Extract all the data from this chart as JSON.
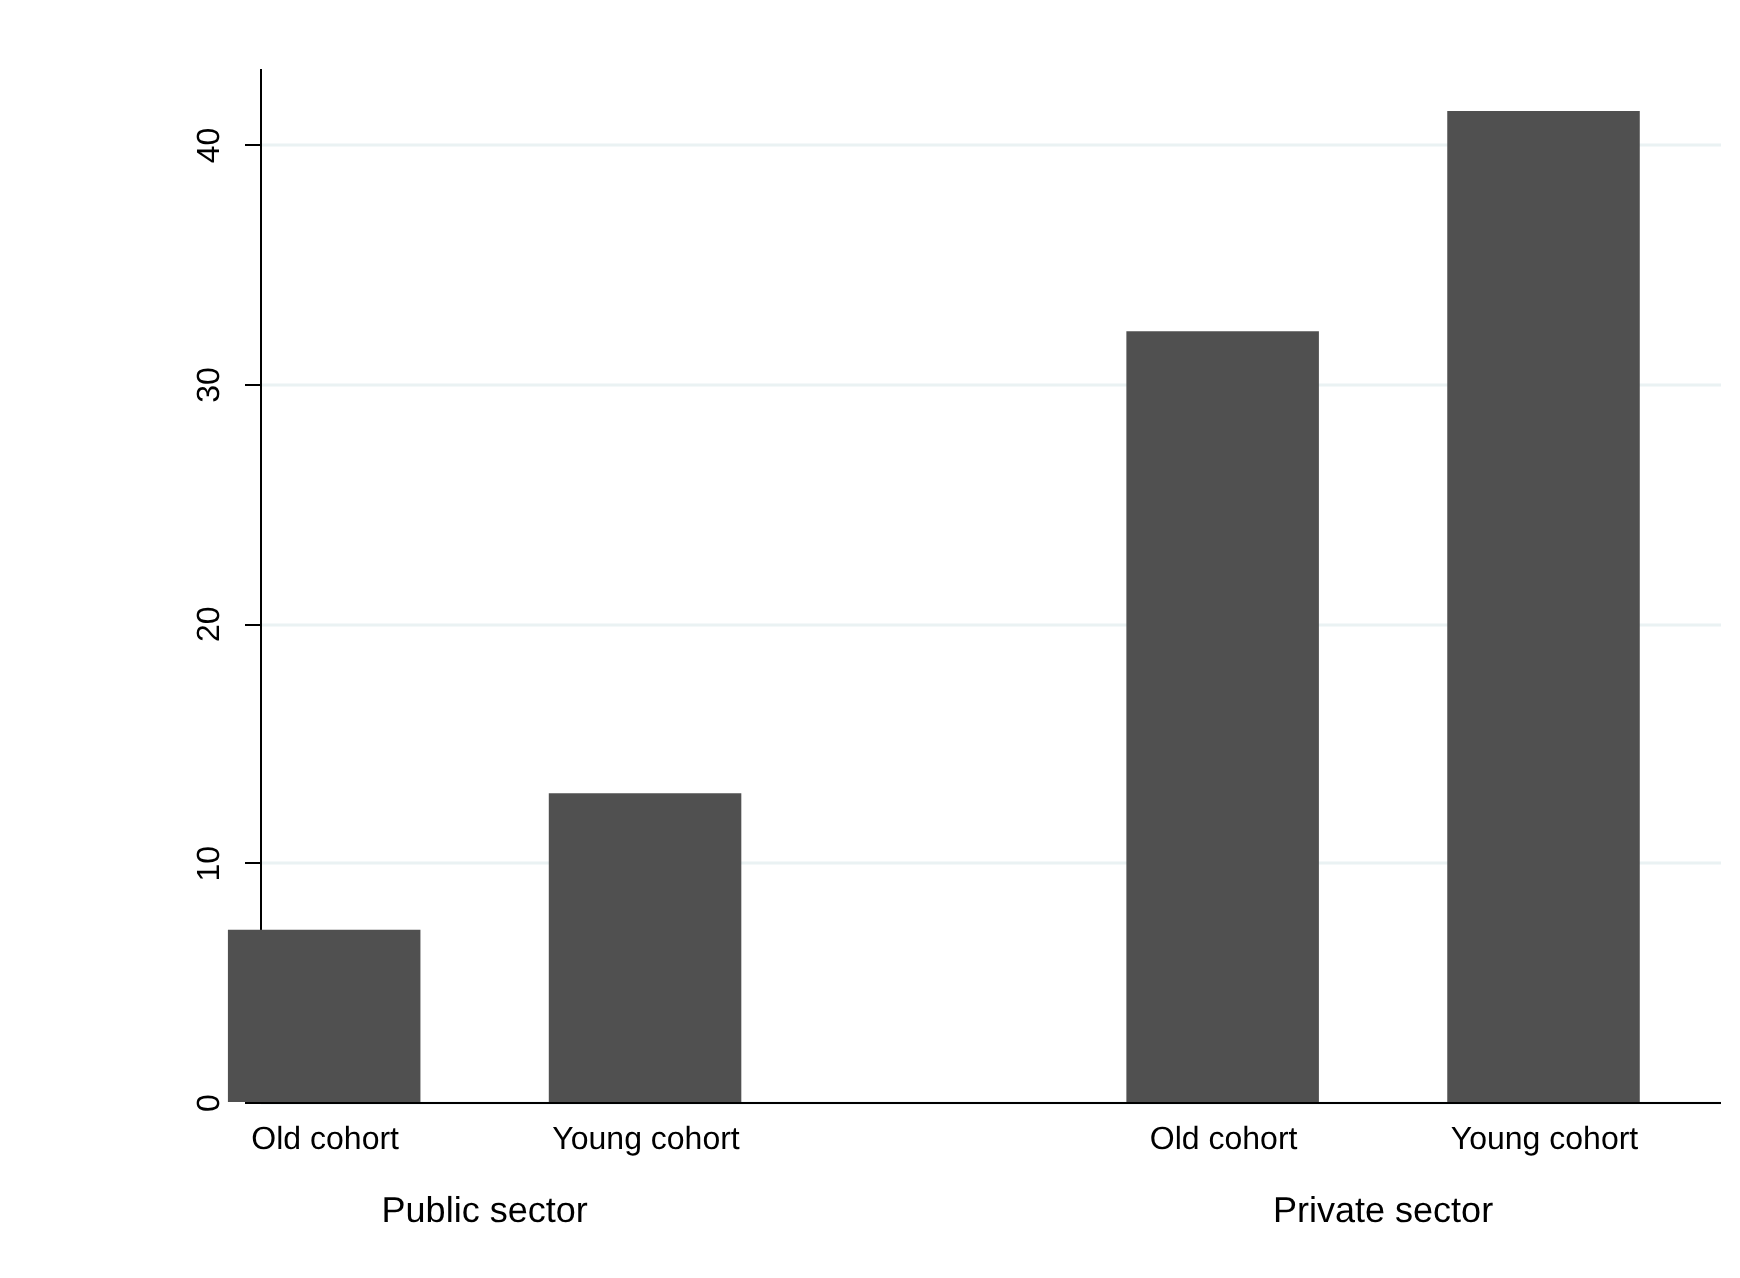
{
  "chart_data": {
    "type": "bar",
    "categories": [
      "Old cohort",
      "Young cohort",
      "Old cohort",
      "Young cohort"
    ],
    "values": [
      7.2,
      12.9,
      32.2,
      41.4
    ],
    "color": "#505050",
    "ylim": [
      0,
      43.2
    ],
    "yticks": [
      0,
      10,
      20,
      30,
      40
    ],
    "grid": "y",
    "annotations": [
      "Public sector",
      "Private sector"
    ]
  }
}
